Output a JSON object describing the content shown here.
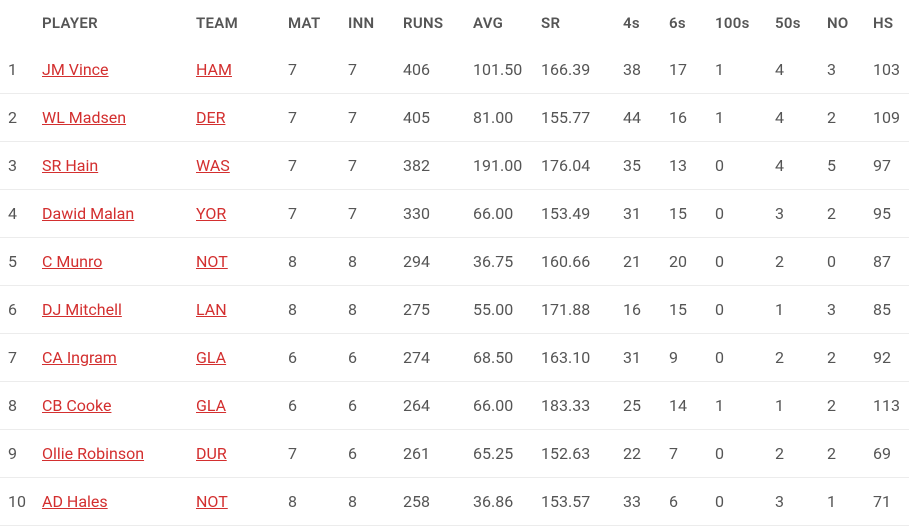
{
  "table": {
    "columns": [
      {
        "key": "rank",
        "label": "",
        "class": "col-rank"
      },
      {
        "key": "player",
        "label": "PLAYER",
        "class": "col-player"
      },
      {
        "key": "team",
        "label": "TEAM",
        "class": "col-team"
      },
      {
        "key": "mat",
        "label": "MAT",
        "class": "col-mat"
      },
      {
        "key": "inn",
        "label": "INN",
        "class": "col-inn"
      },
      {
        "key": "runs",
        "label": "RUNS",
        "class": "col-runs"
      },
      {
        "key": "avg",
        "label": "AVG",
        "class": "col-avg"
      },
      {
        "key": "sr",
        "label": "SR",
        "class": "col-sr"
      },
      {
        "key": "4s",
        "label": "4s",
        "class": "col-4s"
      },
      {
        "key": "6s",
        "label": "6s",
        "class": "col-6s"
      },
      {
        "key": "100s",
        "label": "100s",
        "class": "col-100s"
      },
      {
        "key": "50s",
        "label": "50s",
        "class": "col-50s"
      },
      {
        "key": "no",
        "label": "NO",
        "class": "col-no"
      },
      {
        "key": "hs",
        "label": "HS",
        "class": "col-hs"
      }
    ],
    "rows": [
      {
        "rank": "1",
        "player": "JM Vince",
        "team": "HAM",
        "mat": "7",
        "inn": "7",
        "runs": "406",
        "avg": "101.50",
        "sr": "166.39",
        "4s": "38",
        "6s": "17",
        "100s": "1",
        "50s": "4",
        "no": "3",
        "hs": "103"
      },
      {
        "rank": "2",
        "player": "WL Madsen",
        "team": "DER",
        "mat": "7",
        "inn": "7",
        "runs": "405",
        "avg": "81.00",
        "sr": "155.77",
        "4s": "44",
        "6s": "16",
        "100s": "1",
        "50s": "4",
        "no": "2",
        "hs": "109"
      },
      {
        "rank": "3",
        "player": "SR Hain",
        "team": "WAS",
        "mat": "7",
        "inn": "7",
        "runs": "382",
        "avg": "191.00",
        "sr": "176.04",
        "4s": "35",
        "6s": "13",
        "100s": "0",
        "50s": "4",
        "no": "5",
        "hs": "97"
      },
      {
        "rank": "4",
        "player": "Dawid Malan",
        "team": "YOR",
        "mat": "7",
        "inn": "7",
        "runs": "330",
        "avg": "66.00",
        "sr": "153.49",
        "4s": "31",
        "6s": "15",
        "100s": "0",
        "50s": "3",
        "no": "2",
        "hs": "95"
      },
      {
        "rank": "5",
        "player": "C Munro",
        "team": "NOT",
        "mat": "8",
        "inn": "8",
        "runs": "294",
        "avg": "36.75",
        "sr": "160.66",
        "4s": "21",
        "6s": "20",
        "100s": "0",
        "50s": "2",
        "no": "0",
        "hs": "87"
      },
      {
        "rank": "6",
        "player": "DJ Mitchell",
        "team": "LAN",
        "mat": "8",
        "inn": "8",
        "runs": "275",
        "avg": "55.00",
        "sr": "171.88",
        "4s": "16",
        "6s": "15",
        "100s": "0",
        "50s": "1",
        "no": "3",
        "hs": "85"
      },
      {
        "rank": "7",
        "player": "CA Ingram",
        "team": "GLA",
        "mat": "6",
        "inn": "6",
        "runs": "274",
        "avg": "68.50",
        "sr": "163.10",
        "4s": "31",
        "6s": "9",
        "100s": "0",
        "50s": "2",
        "no": "2",
        "hs": "92"
      },
      {
        "rank": "8",
        "player": "CB Cooke",
        "team": "GLA",
        "mat": "6",
        "inn": "6",
        "runs": "264",
        "avg": "66.00",
        "sr": "183.33",
        "4s": "25",
        "6s": "14",
        "100s": "1",
        "50s": "1",
        "no": "2",
        "hs": "113"
      },
      {
        "rank": "9",
        "player": "Ollie Robinson",
        "team": "DUR",
        "mat": "7",
        "inn": "6",
        "runs": "261",
        "avg": "65.25",
        "sr": "152.63",
        "4s": "22",
        "6s": "7",
        "100s": "0",
        "50s": "2",
        "no": "2",
        "hs": "69"
      },
      {
        "rank": "10",
        "player": "AD Hales",
        "team": "NOT",
        "mat": "8",
        "inn": "8",
        "runs": "258",
        "avg": "36.86",
        "sr": "153.57",
        "4s": "33",
        "6s": "6",
        "100s": "0",
        "50s": "3",
        "no": "1",
        "hs": "71"
      }
    ],
    "link_color": "#d32f2f",
    "header_text_color": "#555555",
    "body_text_color": "#555555",
    "row_border_color": "#ececec",
    "background_color": "#ffffff",
    "header_fontsize": 15,
    "body_fontsize": 16
  }
}
